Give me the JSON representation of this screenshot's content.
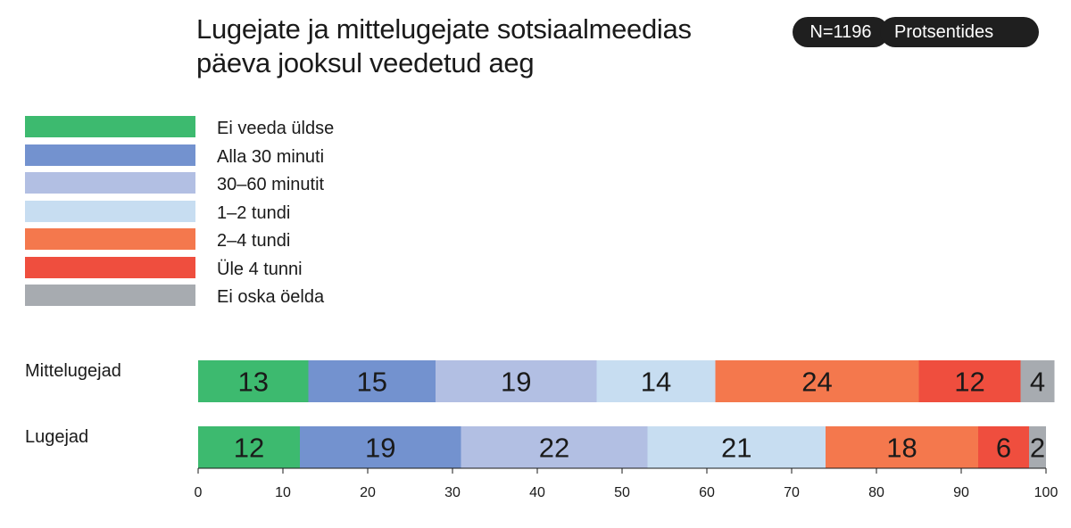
{
  "header": {
    "title_line1": "Lugejate ja mittelugejate sotsiaalmeedias",
    "title_line2": "päeva jooksul veedetud aeg",
    "sample_badge": "N=1196",
    "unit_badge": "Protsentides"
  },
  "legend": [
    {
      "label": "Ei veeda üldse",
      "color": "#3dba6f"
    },
    {
      "label": "Alla 30 minuti",
      "color": "#7392cf"
    },
    {
      "label": "30–60 minutit",
      "color": "#b2bfe3"
    },
    {
      "label": "1–2 tundi",
      "color": "#c7ddf1"
    },
    {
      "label": "2–4 tundi",
      "color": "#f4784d"
    },
    {
      "label": "Üle 4 tunni",
      "color": "#ef4e3e"
    },
    {
      "label": "Ei oska öelda",
      "color": "#a7abb0"
    }
  ],
  "chart_data": {
    "type": "bar",
    "orientation": "horizontal",
    "stacked": true,
    "title": "Lugejate ja mittelugejate sotsiaalmeedias päeva jooksul veedetud aeg",
    "categories": [
      "Mittelugejad",
      "Lugejad"
    ],
    "series": [
      {
        "name": "Ei veeda üldse",
        "values": [
          13,
          12
        ]
      },
      {
        "name": "Alla 30 minuti",
        "values": [
          15,
          19
        ]
      },
      {
        "name": "30–60 minutit",
        "values": [
          19,
          22
        ]
      },
      {
        "name": "1–2 tundi",
        "values": [
          14,
          21
        ]
      },
      {
        "name": "2–4 tundi",
        "values": [
          24,
          18
        ]
      },
      {
        "name": "Üle 4 tunni",
        "values": [
          12,
          6
        ]
      },
      {
        "name": "Ei oska öelda",
        "values": [
          4,
          2
        ]
      }
    ],
    "xlim": [
      0,
      100
    ],
    "xticks": [
      "0",
      "10",
      "20",
      "30",
      "40",
      "50",
      "60",
      "70",
      "80",
      "90",
      "100"
    ],
    "xlabel": "",
    "ylabel": "",
    "grid": false,
    "legend_position": "top-left"
  }
}
